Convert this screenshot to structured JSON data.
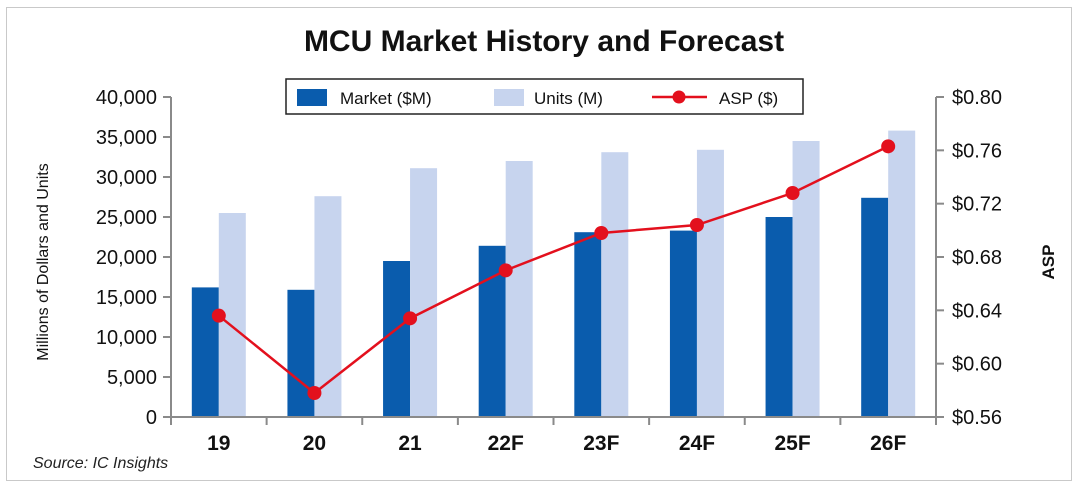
{
  "chart_data": {
    "type": "bar",
    "title": "MCU Market History and Forecast",
    "categories": [
      "19",
      "20",
      "21",
      "22F",
      "23F",
      "24F",
      "25F",
      "26F"
    ],
    "series": [
      {
        "name": "Market ($M)",
        "type": "bar",
        "axis": "left",
        "color": "#0a5cad",
        "values": [
          16200,
          15900,
          19500,
          21400,
          23100,
          23300,
          25000,
          27400
        ]
      },
      {
        "name": "Units (M)",
        "type": "bar",
        "axis": "left",
        "color": "#c7d4ee",
        "values": [
          25500,
          27600,
          31100,
          32000,
          33100,
          33400,
          34500,
          35800
        ]
      },
      {
        "name": "ASP ($)",
        "type": "line",
        "axis": "right",
        "color": "#e3101d",
        "values": [
          0.636,
          0.578,
          0.634,
          0.67,
          0.698,
          0.704,
          0.728,
          0.763
        ]
      }
    ],
    "ylabel": "Millions of Dollars and Units",
    "ylim": [
      0,
      40000
    ],
    "yticks": [
      "0",
      "5,000",
      "10,000",
      "15,000",
      "20,000",
      "25,000",
      "30,000",
      "35,000",
      "40,000"
    ],
    "y2label": "ASP",
    "y2lim": [
      0.56,
      0.8
    ],
    "y2ticks": [
      "$0.56",
      "$0.60",
      "$0.64",
      "$0.68",
      "$0.72",
      "$0.76",
      "$0.80"
    ],
    "legend_position": "top-center",
    "source": "Source: IC Insights"
  }
}
